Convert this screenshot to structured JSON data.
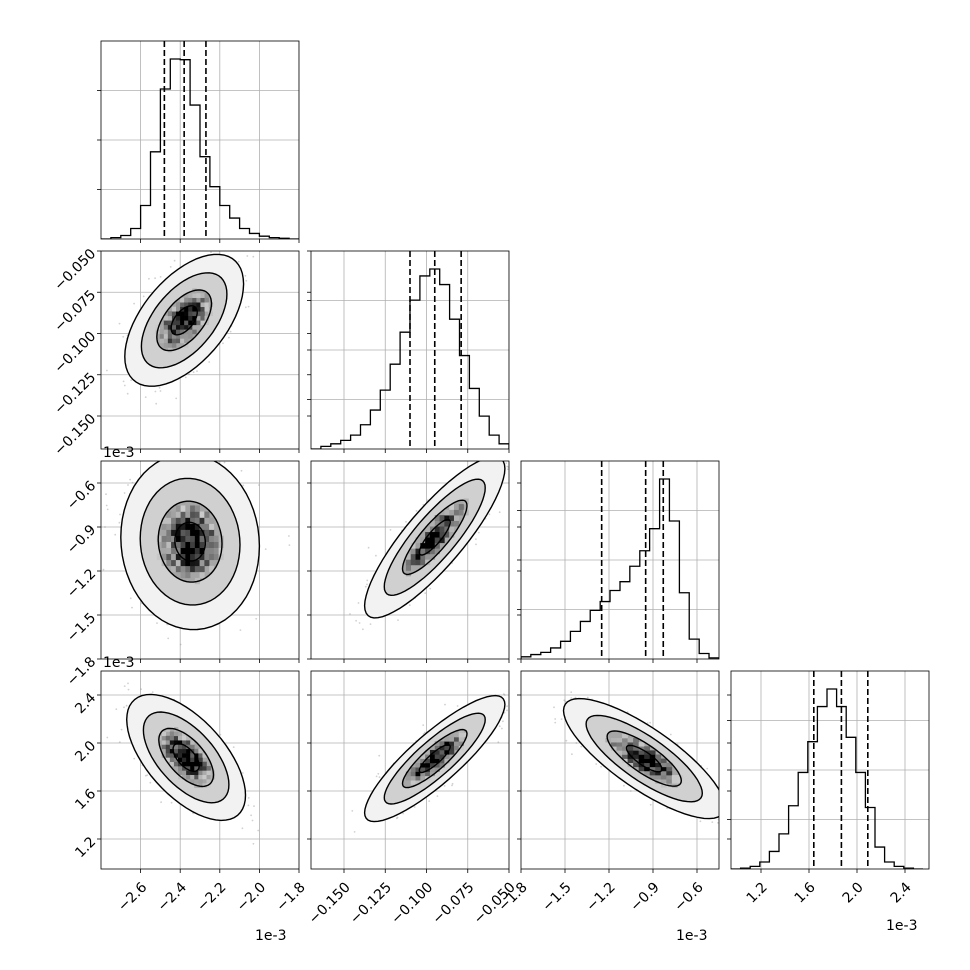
{
  "chart_data": {
    "type": "corner",
    "title": "",
    "grid": true,
    "parameters": [
      {
        "name": "",
        "offset_text": "1e-3",
        "scale": 0.001,
        "median": -2.38,
        "q16": -2.48,
        "q84": -2.27,
        "range": [
          -2.8,
          -1.8
        ],
        "ticks": [
          -2.6,
          -2.4,
          -2.2,
          -2.0,
          -1.8
        ],
        "tick_labels": [
          "−2.6",
          "−2.4",
          "−2.2",
          "−2.0",
          "−1.8"
        ]
      },
      {
        "name": "",
        "offset_text": "",
        "scale": 1,
        "median": -0.095,
        "q16": -0.11,
        "q84": -0.079,
        "range": [
          -0.17,
          -0.05
        ],
        "ticks": [
          -0.15,
          -0.125,
          -0.1,
          -0.075,
          -0.05
        ],
        "tick_labels": [
          "−0.150",
          "−0.125",
          "−0.100",
          "−0.075",
          "−0.050"
        ]
      },
      {
        "name": "",
        "offset_text": "1e-3",
        "scale": 0.001,
        "median": -0.95,
        "q16": -1.25,
        "q84": -0.83,
        "range": [
          -1.8,
          -0.45
        ],
        "ticks": [
          -1.8,
          -1.5,
          -1.2,
          -0.9,
          -0.6
        ],
        "tick_labels": [
          "−1.8",
          "−1.5",
          "−1.2",
          "−0.9",
          "−0.6"
        ]
      },
      {
        "name": "",
        "offset_text": "1e-3",
        "scale": 0.001,
        "median": 1.87,
        "q16": 1.64,
        "q84": 2.09,
        "range": [
          0.95,
          2.6
        ],
        "ticks": [
          1.2,
          1.6,
          2.0,
          2.4
        ],
        "tick_labels": [
          "1.2",
          "1.6",
          "2.0",
          "2.4"
        ]
      }
    ],
    "histograms": [
      {
        "param": 0,
        "edges": [
          -2.8,
          -2.75,
          -2.7,
          -2.65,
          -2.6,
          -2.55,
          -2.5,
          -2.45,
          -2.4,
          -2.35,
          -2.3,
          -2.25,
          -2.2,
          -2.15,
          -2.1,
          -2.05,
          -2.0,
          -1.95,
          -1.9,
          -1.85,
          -1.8
        ],
        "counts": [
          0,
          2,
          5,
          15,
          48,
          125,
          215,
          258,
          257,
          192,
          118,
          75,
          48,
          30,
          15,
          8,
          4,
          2,
          1,
          0
        ]
      },
      {
        "param": 1,
        "edges": [
          -0.17,
          -0.164,
          -0.158,
          -0.152,
          -0.146,
          -0.14,
          -0.134,
          -0.128,
          -0.122,
          -0.116,
          -0.11,
          -0.104,
          -0.098,
          -0.092,
          -0.086,
          -0.08,
          -0.074,
          -0.068,
          -0.062,
          -0.056,
          -0.05
        ],
        "counts": [
          0,
          3,
          6,
          10,
          16,
          28,
          45,
          68,
          98,
          135,
          172,
          200,
          208,
          190,
          150,
          108,
          70,
          38,
          16,
          6
        ]
      },
      {
        "param": 2,
        "edges": [
          -1.8,
          -1.733,
          -1.665,
          -1.598,
          -1.53,
          -1.463,
          -1.395,
          -1.328,
          -1.26,
          -1.193,
          -1.125,
          -1.058,
          -0.99,
          -0.923,
          -0.855,
          -0.788,
          -0.72,
          -0.653,
          -0.585,
          -0.518,
          -0.45
        ],
        "counts": [
          2,
          4,
          6,
          10,
          16,
          25,
          34,
          44,
          52,
          62,
          70,
          84,
          98,
          118,
          163,
          125,
          60,
          18,
          5,
          1
        ]
      },
      {
        "param": 3,
        "edges": [
          0.95,
          1.03,
          1.11,
          1.19,
          1.27,
          1.35,
          1.43,
          1.51,
          1.59,
          1.67,
          1.75,
          1.83,
          1.91,
          1.99,
          2.07,
          2.15,
          2.23,
          2.31,
          2.39,
          2.47,
          2.55
        ],
        "counts": [
          0,
          1,
          3,
          8,
          20,
          40,
          72,
          110,
          145,
          185,
          205,
          185,
          150,
          110,
          70,
          25,
          8,
          3,
          1,
          0
        ]
      }
    ],
    "pairs": [
      {
        "x": 0,
        "y": 1,
        "center": [
          -2.38,
          -0.092
        ],
        "sd_x": 0.12,
        "sd_y": 0.016,
        "corr": 0.55
      },
      {
        "x": 0,
        "y": 2,
        "center": [
          -2.35,
          -1.0
        ],
        "sd_x": 0.14,
        "sd_y": 0.24,
        "corr": -0.05
      },
      {
        "x": 1,
        "y": 2,
        "center": [
          -0.095,
          -0.97
        ],
        "sd_x": 0.017,
        "sd_y": 0.22,
        "corr": 0.85
      },
      {
        "x": 0,
        "y": 3,
        "center": [
          -2.37,
          1.88
        ],
        "sd_x": 0.12,
        "sd_y": 0.21,
        "corr": -0.6
      },
      {
        "x": 1,
        "y": 3,
        "center": [
          -0.095,
          1.87
        ],
        "sd_x": 0.017,
        "sd_y": 0.21,
        "corr": 0.86
      },
      {
        "x": 2,
        "y": 3,
        "center": [
          -0.96,
          1.87
        ],
        "sd_x": 0.22,
        "sd_y": 0.2,
        "corr": -0.8
      }
    ]
  }
}
